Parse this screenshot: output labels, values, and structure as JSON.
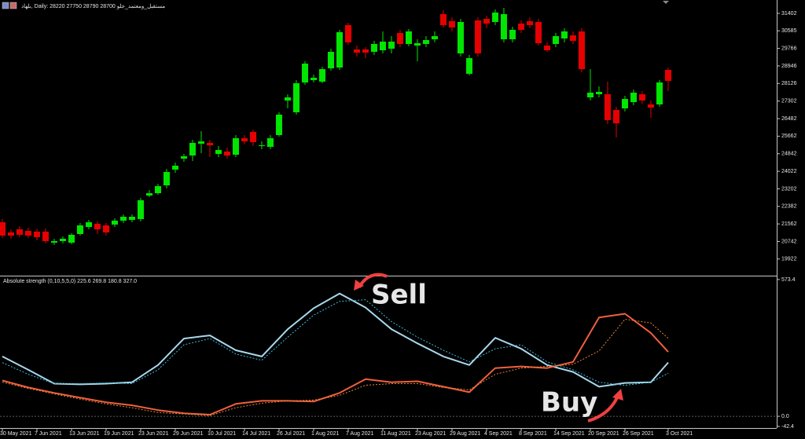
{
  "chart_data": [
    {
      "type": "candlestick",
      "title": "بلهاد, Daily:  28220 27750 28790 28700  مستقبل_ومعتمد_جلو",
      "up_color": "#00e600",
      "down_color": "#e60000",
      "open": [
        21640,
        21163,
        21310,
        21237,
        21200,
        21200,
        20686,
        20759,
        20686,
        21090,
        21420,
        21567,
        21493,
        21530,
        21714,
        21750,
        21787,
        22888,
        22998,
        23365,
        24099,
        24612,
        24759,
        25310,
        25347,
        24833,
        24943,
        24796,
        25567,
        25860,
        25200,
        25163,
        25714,
        27328,
        26778,
        28172,
        28282,
        28209,
        28833,
        28870,
        30852,
        29714,
        29714,
        29604,
        29677,
        29751,
        30485,
        29971,
        29897,
        29971,
        30191,
        31365,
        31035,
        29530,
        28576,
        31072,
        31145,
        30998,
        30191,
        30191,
        30925,
        31035,
        30998,
        29897,
        29971,
        30228,
        30374,
        30558,
        27475,
        27622,
        27622,
        26888,
        26961,
        27255,
        27622,
        27145,
        27145,
        28760
      ],
      "high": [
        21787,
        21310,
        21457,
        21383,
        21346,
        21346,
        20869,
        20979,
        21126,
        21604,
        21750,
        21677,
        21604,
        21824,
        22007,
        22007,
        22778,
        23145,
        23438,
        24135,
        24429,
        24833,
        25493,
        25897,
        25493,
        25200,
        25126,
        25714,
        25714,
        25970,
        25420,
        25714,
        26778,
        27622,
        28282,
        29163,
        28539,
        28906,
        29751,
        30631,
        30962,
        29897,
        29824,
        30118,
        30558,
        30338,
        30631,
        30668,
        30191,
        30338,
        30558,
        31549,
        31218,
        31145,
        29457,
        31218,
        31292,
        31586,
        31659,
        30778,
        31072,
        31218,
        31145,
        30044,
        30485,
        30705,
        30558,
        30705,
        28796,
        27989,
        28209,
        27035,
        27548,
        27842,
        27769,
        27328,
        28282,
        28870
      ],
      "low": [
        20906,
        20869,
        20943,
        20906,
        20796,
        20649,
        20576,
        20649,
        20612,
        21016,
        21310,
        21090,
        21016,
        21420,
        21604,
        21640,
        21677,
        22814,
        22924,
        23218,
        23952,
        24466,
        24502,
        24869,
        24686,
        24686,
        24612,
        24686,
        25273,
        25200,
        25053,
        25053,
        25640,
        26961,
        26668,
        28062,
        28172,
        28136,
        28723,
        28760,
        29934,
        29384,
        29310,
        29457,
        29530,
        29530,
        29824,
        29861,
        29163,
        29824,
        30044,
        30741,
        30558,
        29384,
        28503,
        29384,
        30705,
        30852,
        30044,
        30044,
        30485,
        30705,
        29897,
        29604,
        29824,
        30044,
        29971,
        28649,
        27328,
        27475,
        26227,
        25604,
        26814,
        27108,
        27182,
        26521,
        27035,
        27769
      ],
      "close": [
        21016,
        21016,
        21053,
        21016,
        20943,
        20759,
        20759,
        20869,
        21053,
        21493,
        21640,
        21310,
        21163,
        21714,
        21897,
        21897,
        22667,
        22998,
        23328,
        23989,
        24282,
        24723,
        25347,
        25420,
        25237,
        25016,
        24759,
        25567,
        25420,
        25383,
        25237,
        25567,
        26668,
        27475,
        28136,
        29053,
        28393,
        28796,
        29604,
        30521,
        30044,
        29567,
        29567,
        29971,
        30081,
        30081,
        29971,
        30558,
        30007,
        30154,
        30338,
        30852,
        30741,
        30998,
        29310,
        29530,
        30925,
        31439,
        31365,
        30631,
        30631,
        30852,
        30007,
        29677,
        30338,
        30558,
        30118,
        28796,
        27695,
        27732,
        26411,
        26264,
        27402,
        27695,
        27328,
        26998,
        28172,
        28246
      ],
      "xlim": [
        -0.27,
        89.55
      ],
      "xticks": [
        {
          "value": 0,
          "label": "30 May 2021"
        },
        {
          "value": 4,
          "label": "7 Jun 2021"
        },
        {
          "value": 8,
          "label": "13 Jun 2021"
        },
        {
          "value": 12,
          "label": "19 Jun 2021"
        },
        {
          "value": 16,
          "label": "23 Jun 2021"
        },
        {
          "value": 20,
          "label": "29 Jun 2021"
        },
        {
          "value": 24,
          "label": "10 Jul 2021"
        },
        {
          "value": 28,
          "label": "14 Jul 2021"
        },
        {
          "value": 32,
          "label": "26 Jul 2021"
        },
        {
          "value": 36,
          "label": "1 Aug 2021"
        },
        {
          "value": 40,
          "label": "7 Aug 2021"
        },
        {
          "value": 44,
          "label": "11 Aug 2021"
        },
        {
          "value": 48,
          "label": "23 Aug 2021"
        },
        {
          "value": 52,
          "label": "29 Aug 2021"
        },
        {
          "value": 56,
          "label": "4 Sep 2021"
        },
        {
          "value": 60,
          "label": "8 Sep 2021"
        },
        {
          "value": 64,
          "label": "14 Sep 2021"
        },
        {
          "value": 68,
          "label": "20 Sep 2021"
        },
        {
          "value": 72,
          "label": "26 Sep 2021"
        },
        {
          "value": 77,
          "label": "3 Oct 2021"
        }
      ],
      "ylim": [
        19181,
        32026
      ],
      "yticks": [
        31402,
        30585,
        29766,
        28946,
        28126,
        27302,
        26482,
        25662,
        24842,
        24022,
        23202,
        22382,
        21562,
        20742,
        19922
      ]
    },
    {
      "type": "line",
      "title": "Absolute strength (0,10,5,5,0) 225.6 269.8 180.8 327.0",
      "x": [
        0,
        3,
        6,
        9,
        12,
        15,
        18,
        21,
        24,
        27,
        30,
        33,
        36,
        39,
        42,
        45,
        48,
        51,
        54,
        57,
        60,
        63,
        66,
        69,
        72,
        75,
        77
      ],
      "xlim": [
        -0.27,
        89.55
      ],
      "ylim": [
        -49,
        583
      ],
      "yticks": [
        573.4,
        {
          "value": 0,
          "label": "0.0"
        },
        -42.4
      ],
      "series": [
        {
          "color": "#a8d8ec",
          "dashed": false,
          "values": [
            251,
            195,
            137,
            134,
            137,
            143,
            215,
            326,
            339,
            277,
            251,
            365,
            453,
            515,
            456,
            365,
            306,
            251,
            215,
            329,
            283,
            215,
            186,
            124,
            140,
            143,
            225.6
          ]
        },
        {
          "color": "#f0603e",
          "dashed": false,
          "values": [
            150,
            121,
            98,
            78,
            59,
            46,
            26,
            13,
            7,
            52,
            65,
            65,
            62,
            98,
            156,
            143,
            147,
            124,
            101,
            202,
            209,
            202,
            228,
            414,
            430,
            349,
            269.8
          ]
        },
        {
          "color": "#40b8d8",
          "dashed": true,
          "values": [
            225,
            176,
            137,
            137,
            140,
            137,
            195,
            300,
            326,
            261,
            235,
            332,
            424,
            482,
            489,
            397,
            332,
            277,
            228,
            283,
            300,
            228,
            195,
            143,
            130,
            143,
            180.8
          ]
        },
        {
          "color": "#e8843a",
          "dashed": true,
          "values": [
            143,
            117,
            94,
            72,
            52,
            36,
            16,
            10,
            3,
            36,
            55,
            65,
            68,
            88,
            130,
            137,
            137,
            121,
            111,
            176,
            202,
            209,
            218,
            274,
            407,
            391,
            327.0
          ]
        }
      ],
      "annotations": [
        {
          "text": "Sell",
          "color": "#ff2aa6"
        },
        {
          "text": "Buy",
          "color": "#1ff06a"
        }
      ]
    }
  ]
}
